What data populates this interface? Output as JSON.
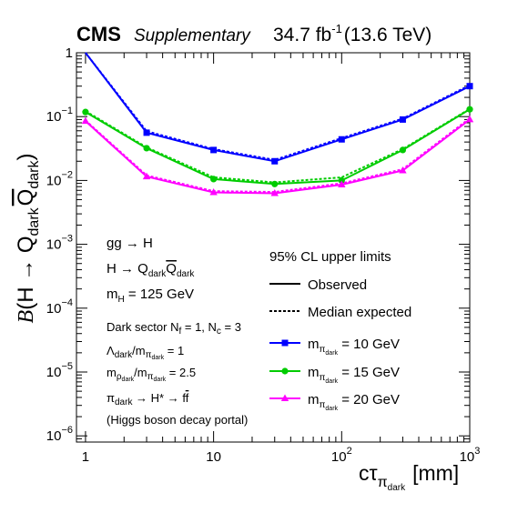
{
  "header": {
    "experiment": "CMS",
    "status": "Supplementary",
    "lumi": "34.7 fb",
    "lumi_unit_exp": "-1",
    "energy": "(13.6 TeV)"
  },
  "annotations": {
    "process": "gg → H",
    "decay_prefix": "H → Q",
    "decay_sub": "dark",
    "decay_bar": "Q",
    "mass_prefix": "m",
    "mass_sub": "H",
    "mass_value": " = 125 GeV",
    "dark_sector": "Dark sector N",
    "nf_sub": "f",
    "nf_val": " = 1,  N",
    "nc_sub": "c",
    "nc_val": " = 3",
    "lambda_sym": "Λ",
    "lambda_sub": "dark",
    "ratio_slash_m": "/m",
    "pi_sym": "π",
    "ratio1_val": " = 1",
    "rho_prefix": "m",
    "rho_sym": "ρ",
    "ratio2_val": " = 2.5",
    "portal_prefix": "π",
    "portal_sub": "dark",
    "portal_rest": " → H* → f",
    "portal_fbar": "f",
    "portal_note": "(Higgs boson decay portal)"
  },
  "legend": {
    "title": "95% CL upper limits",
    "observed": "Observed",
    "expected": "Median expected",
    "entries": [
      {
        "prefix": "m",
        "sub": "π",
        "subsub": "dark",
        "value": " = 10 GeV"
      },
      {
        "prefix": "m",
        "sub": "π",
        "subsub": "dark",
        "value": " = 15 GeV"
      },
      {
        "prefix": "m",
        "sub": "π",
        "subsub": "dark",
        "value": " = 20 GeV"
      }
    ]
  },
  "axes": {
    "ylabel_b": "B",
    "ylabel_rest": "(H → Q",
    "ylabel_sub": "dark",
    "ylabel_bar": "Q",
    "ylabel_sub2": "dark",
    "ylabel_close": ")",
    "xlabel_main": "cτ",
    "xlabel_sub": "π",
    "xlabel_subsub": "dark",
    "xlabel_unit": "[mm]",
    "xticks": [
      {
        "base": "1",
        "exp": ""
      },
      {
        "base": "10",
        "exp": ""
      },
      {
        "base": "10",
        "exp": "2"
      },
      {
        "base": "10",
        "exp": "3"
      }
    ],
    "yticks": [
      {
        "base": "1",
        "exp": ""
      },
      {
        "base": "10",
        "exp": "−1"
      },
      {
        "base": "10",
        "exp": "−2"
      },
      {
        "base": "10",
        "exp": "−3"
      },
      {
        "base": "10",
        "exp": "−4"
      },
      {
        "base": "10",
        "exp": "−5"
      },
      {
        "base": "10",
        "exp": "−6"
      }
    ]
  },
  "chart_data": {
    "type": "line",
    "x_scale": "log",
    "y_scale": "log",
    "xlim": [
      0.85,
      1000
    ],
    "ylim": [
      8e-07,
      1
    ],
    "x": [
      1,
      3,
      10,
      30,
      100,
      300,
      1000
    ],
    "series": [
      {
        "name": "m_πdark = 10 GeV",
        "color": "#0000ff",
        "marker": "square",
        "observed": [
          1.0,
          0.056,
          0.03,
          0.02,
          0.044,
          0.09,
          0.3
        ],
        "expected": [
          1.0,
          0.059,
          0.031,
          0.021,
          0.046,
          0.093,
          0.31
        ]
      },
      {
        "name": "m_πdark = 15 GeV",
        "color": "#00cc00",
        "marker": "circle",
        "observed": [
          0.118,
          0.032,
          0.0105,
          0.0088,
          0.01,
          0.03,
          0.13
        ],
        "expected": [
          0.122,
          0.033,
          0.0112,
          0.0093,
          0.0112,
          0.031,
          0.132
        ]
      },
      {
        "name": "m_πdark = 20 GeV",
        "color": "#ff00ff",
        "marker": "triangle",
        "observed": [
          0.085,
          0.0115,
          0.0065,
          0.0063,
          0.0086,
          0.0143,
          0.09
        ],
        "expected": [
          0.087,
          0.012,
          0.0068,
          0.0066,
          0.009,
          0.015,
          0.094
        ]
      }
    ]
  }
}
